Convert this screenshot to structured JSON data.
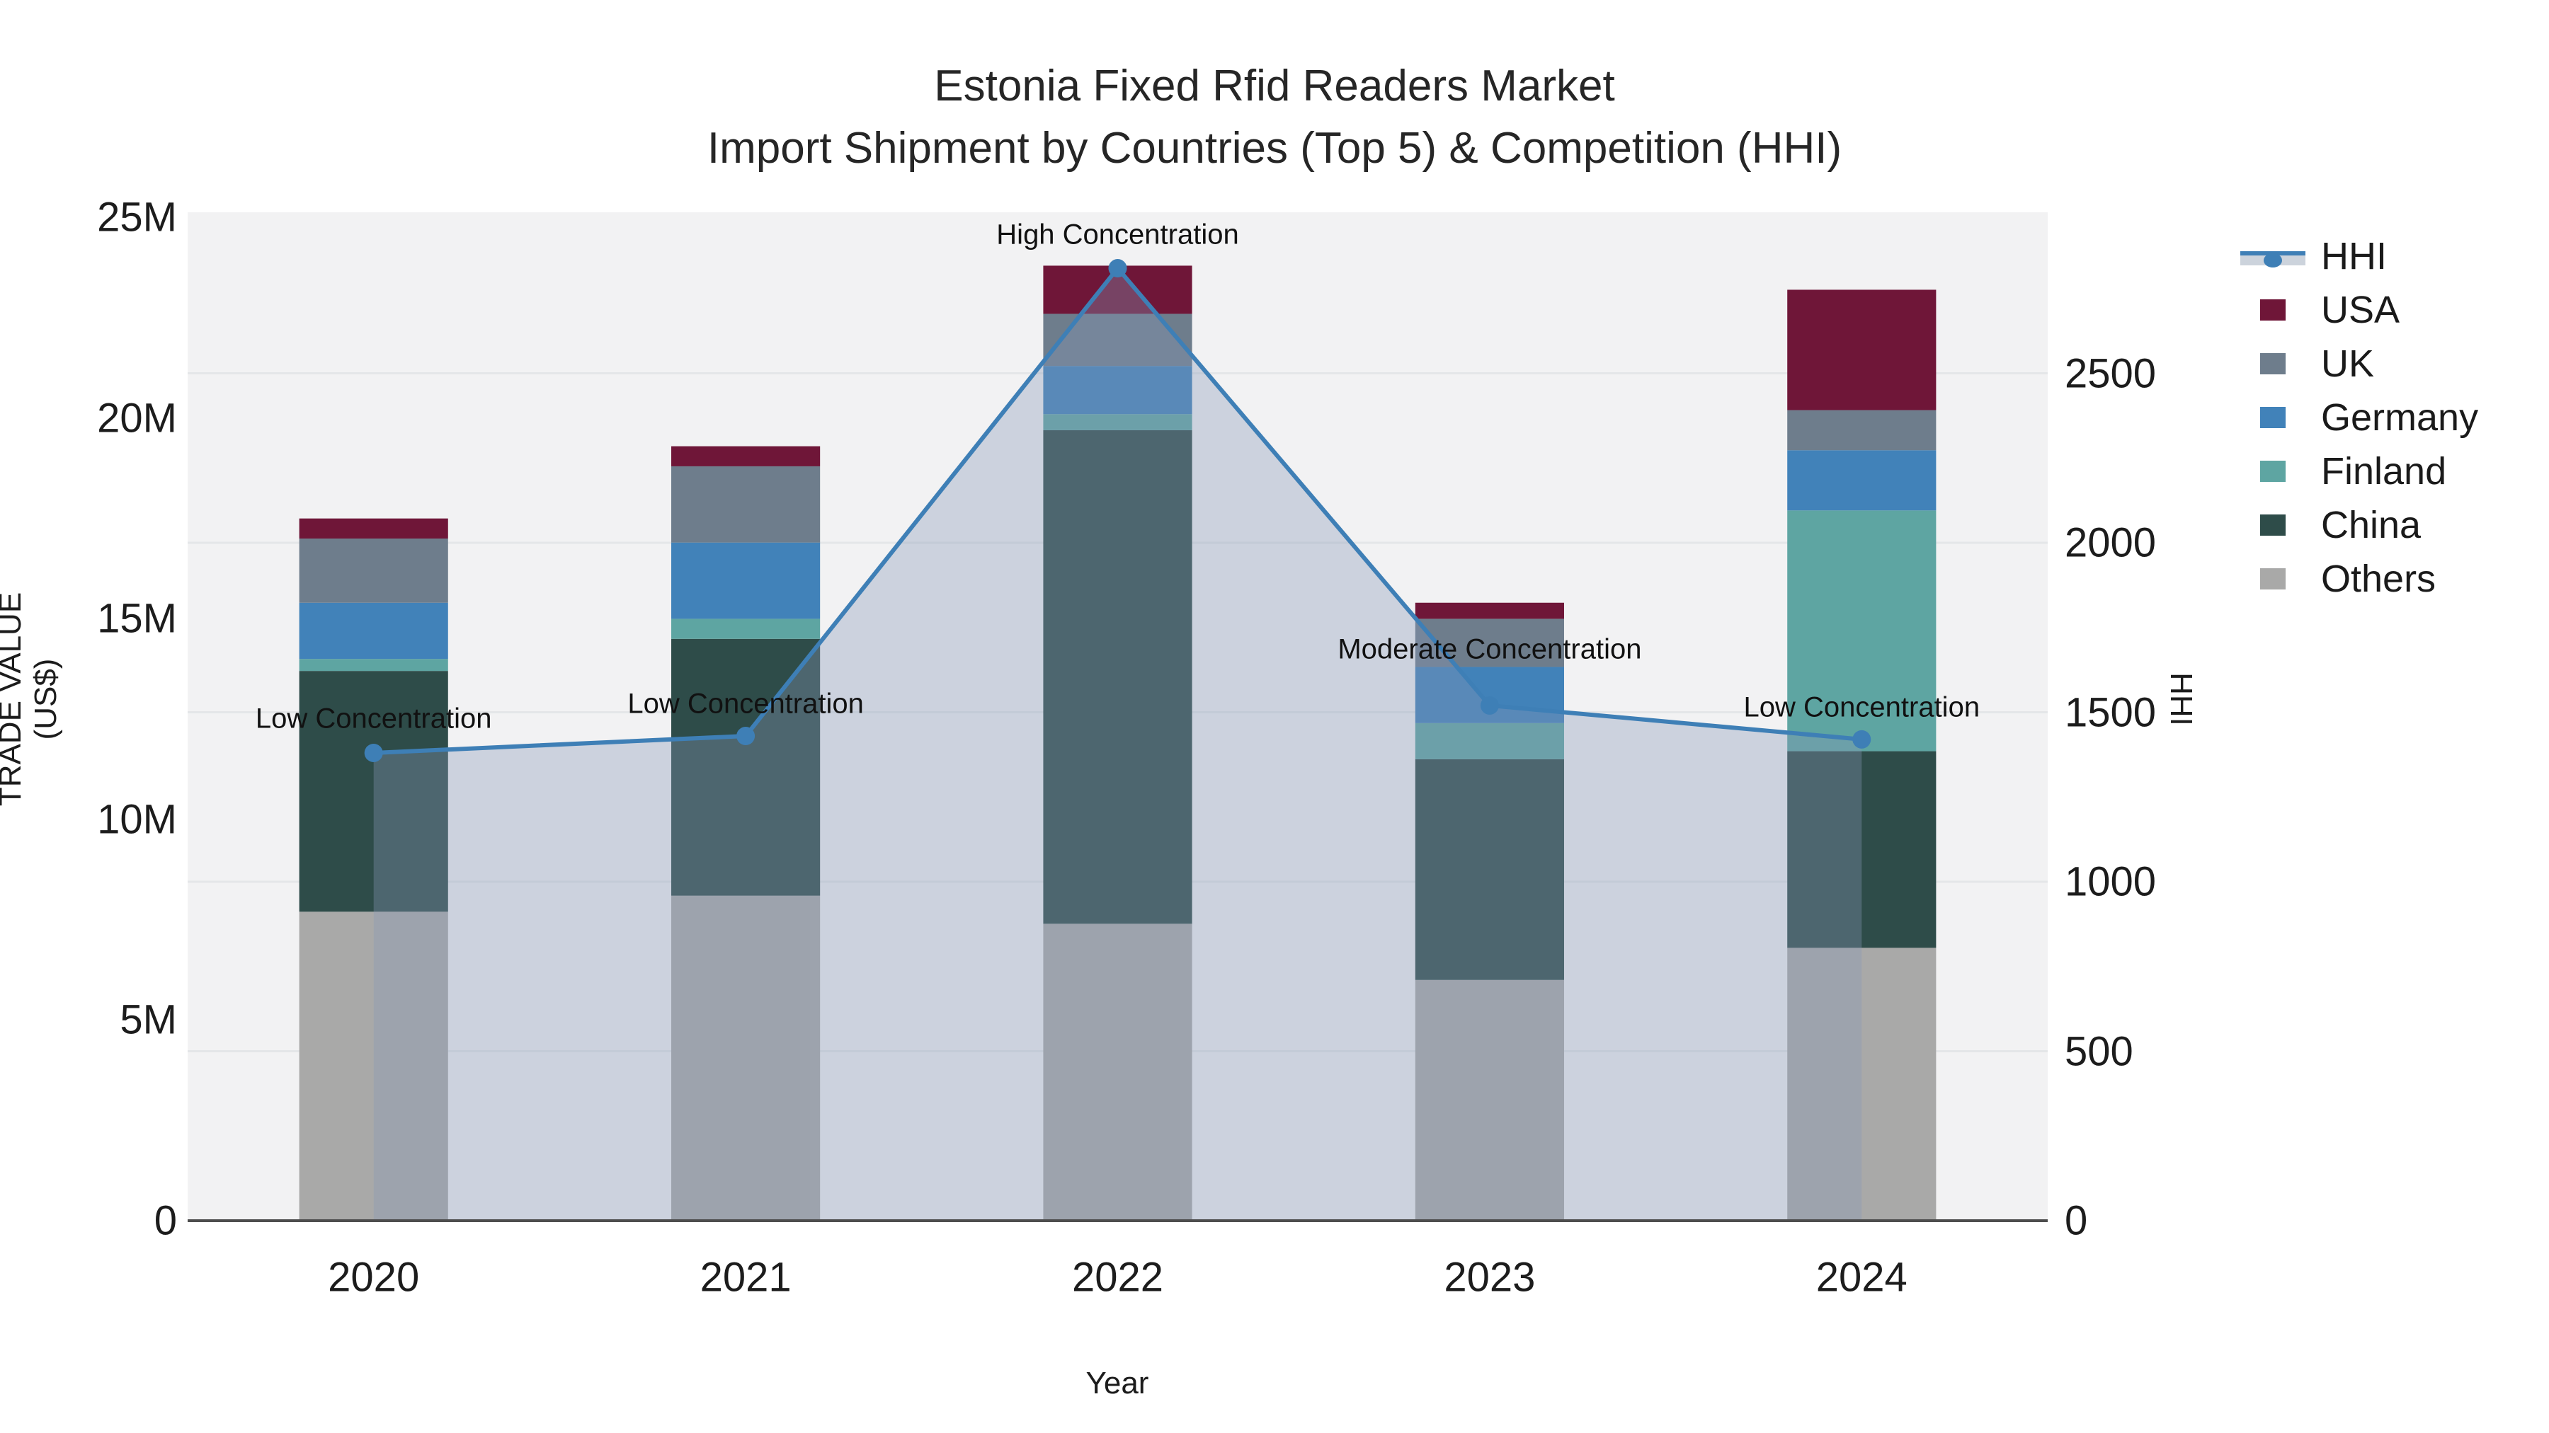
{
  "title": {
    "line1": "Estonia Fixed Rfid Readers Market",
    "line2": "Import Shipment by Countries (Top 5) & Competition (HHI)"
  },
  "chart_data": {
    "type": "bar+line",
    "categories": [
      "2020",
      "2021",
      "2022",
      "2023",
      "2024"
    ],
    "xlabel": "Year",
    "ylabel": "TRADE VALUE (US$)",
    "y2label": "HHI",
    "ylim": [
      0,
      25130000
    ],
    "y2lim": [
      0,
      2975
    ],
    "bar_width_frac": 0.4,
    "grid_color": "#e4e6e8",
    "plot_bg": "#f2f2f3",
    "series": [
      {
        "name": "Others",
        "color": "#a9a9a8",
        "values": [
          7700000,
          8100000,
          7400000,
          6000000,
          6800000
        ]
      },
      {
        "name": "China",
        "color": "#2e4c49",
        "values": [
          6000000,
          6400000,
          12300000,
          5500000,
          4900000
        ]
      },
      {
        "name": "Finland",
        "color": "#5ea5a2",
        "values": [
          300000,
          500000,
          400000,
          900000,
          6000000
        ]
      },
      {
        "name": "Germany",
        "color": "#4182b9",
        "values": [
          1400000,
          1900000,
          1200000,
          1400000,
          1500000
        ]
      },
      {
        "name": "UK",
        "color": "#6e7d8c",
        "values": [
          1600000,
          1900000,
          1300000,
          1200000,
          1000000
        ]
      },
      {
        "name": "USA",
        "color": "#6f1638",
        "values": [
          500000,
          500000,
          1200000,
          400000,
          3000000
        ]
      }
    ],
    "line_series": {
      "name": "HHI",
      "color": "#3e7fb6",
      "fill_color": "rgba(134,152,183,0.35)",
      "values": [
        1380,
        1430,
        2810,
        1520,
        1420
      ]
    },
    "y_ticks": [
      {
        "label": "0",
        "value": 0
      },
      {
        "label": "5M",
        "value": 5000000
      },
      {
        "label": "10M",
        "value": 10000000
      },
      {
        "label": "15M",
        "value": 15000000
      },
      {
        "label": "20M",
        "value": 20000000
      },
      {
        "label": "25M",
        "value": 25000000
      }
    ],
    "y2_ticks": [
      {
        "label": "0",
        "value": 0
      },
      {
        "label": "500",
        "value": 500
      },
      {
        "label": "1000",
        "value": 1000
      },
      {
        "label": "1500",
        "value": 1500
      },
      {
        "label": "2000",
        "value": 2000
      },
      {
        "label": "2500",
        "value": 2500
      }
    ],
    "y2_gridlines": [
      500,
      1000,
      1500,
      2000,
      2500
    ],
    "annotations": [
      {
        "text": "Low Concentration",
        "year_index": 0,
        "dy": 48
      },
      {
        "text": "Low Concentration",
        "year_index": 1,
        "dy": 45
      },
      {
        "text": "High Concentration",
        "year_index": 2,
        "dy": 47
      },
      {
        "text": "Moderate Concentration",
        "year_index": 3,
        "dy": 79
      },
      {
        "text": "Low Concentration",
        "year_index": 4,
        "dy": 45
      }
    ],
    "legend": [
      {
        "label": "HHI",
        "type": "line",
        "color": "#3e7fb6"
      },
      {
        "label": "USA",
        "type": "bar",
        "color": "#6f1638"
      },
      {
        "label": "UK",
        "type": "bar",
        "color": "#6e7d8c"
      },
      {
        "label": "Germany",
        "type": "bar",
        "color": "#4182b9"
      },
      {
        "label": "Finland",
        "type": "bar",
        "color": "#5ea5a2"
      },
      {
        "label": "China",
        "type": "bar",
        "color": "#2e4c49"
      },
      {
        "label": "Others",
        "type": "bar",
        "color": "#a9a9a8"
      }
    ]
  }
}
